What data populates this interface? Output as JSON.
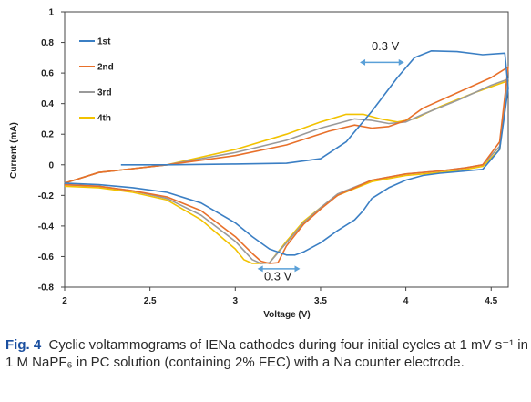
{
  "caption": {
    "label": "Fig. 4",
    "text": "Cyclic voltammograms of IENa cathodes during four initial cycles at 1 mV s⁻¹ in 1 M NaPF₆ in PC solution (containing 2% FEC) with a Na counter electrode."
  },
  "chart_data": {
    "type": "line",
    "title": "",
    "xlabel": "Voltage (V)",
    "ylabel": "Current (mA)",
    "xlim": [
      2,
      4.6
    ],
    "ylim": [
      -0.8,
      1
    ],
    "xticks": [
      2,
      2.5,
      3,
      3.5,
      4,
      4.5
    ],
    "xtick_labels": [
      "2",
      "2.5",
      "3",
      "3.5",
      "4",
      "4.5"
    ],
    "yticks": [
      -0.8,
      -0.6,
      -0.4,
      -0.2,
      0,
      0.2,
      0.4,
      0.6,
      0.8,
      1
    ],
    "ytick_labels": [
      "-0.8",
      "-0.6",
      "-0.4",
      "-0.2",
      "0",
      "0.2",
      "0.4",
      "0.6",
      "0.8",
      "1"
    ],
    "grid": false,
    "legend_position": "top-left",
    "series": [
      {
        "name": "1st",
        "color": "#3b7fc4",
        "x": [
          2.33,
          2.6,
          3.0,
          3.3,
          3.5,
          3.65,
          3.8,
          3.95,
          4.05,
          4.15,
          4.3,
          4.45,
          4.58,
          4.6,
          4.55,
          4.45,
          4.35,
          4.2,
          4.1,
          4.0,
          3.9,
          3.8,
          3.75,
          3.7,
          3.6,
          3.5,
          3.4,
          3.35,
          3.3,
          3.2,
          3.1,
          3.0,
          2.8,
          2.6,
          2.4,
          2.2,
          2.0
        ],
        "y": [
          0.0,
          0.0,
          0.005,
          0.01,
          0.04,
          0.15,
          0.35,
          0.57,
          0.7,
          0.745,
          0.74,
          0.72,
          0.73,
          0.5,
          0.1,
          -0.03,
          -0.04,
          -0.055,
          -0.07,
          -0.1,
          -0.15,
          -0.22,
          -0.3,
          -0.36,
          -0.43,
          -0.51,
          -0.57,
          -0.59,
          -0.59,
          -0.55,
          -0.47,
          -0.38,
          -0.25,
          -0.18,
          -0.15,
          -0.13,
          -0.12
        ]
      },
      {
        "name": "2nd",
        "color": "#e8702a",
        "x": [
          2.0,
          2.2,
          2.6,
          3.0,
          3.3,
          3.55,
          3.7,
          3.8,
          3.9,
          4.0,
          4.1,
          4.3,
          4.5,
          4.6,
          4.55,
          4.45,
          4.35,
          4.2,
          4.0,
          3.8,
          3.6,
          3.5,
          3.4,
          3.3,
          3.25,
          3.2,
          3.15,
          3.1,
          3.0,
          2.8,
          2.6,
          2.4,
          2.2,
          2.0
        ],
        "y": [
          -0.12,
          -0.05,
          0.0,
          0.06,
          0.13,
          0.22,
          0.26,
          0.24,
          0.25,
          0.29,
          0.37,
          0.47,
          0.57,
          0.64,
          0.15,
          0.0,
          -0.02,
          -0.04,
          -0.06,
          -0.1,
          -0.2,
          -0.29,
          -0.39,
          -0.53,
          -0.64,
          -0.645,
          -0.63,
          -0.58,
          -0.47,
          -0.3,
          -0.21,
          -0.17,
          -0.14,
          -0.13
        ]
      },
      {
        "name": "3rd",
        "color": "#9a9a9a",
        "x": [
          2.0,
          2.2,
          2.6,
          3.0,
          3.3,
          3.5,
          3.7,
          3.8,
          3.9,
          4.0,
          4.1,
          4.3,
          4.5,
          4.6,
          4.55,
          4.45,
          4.35,
          4.2,
          4.0,
          3.8,
          3.6,
          3.5,
          3.4,
          3.3,
          3.2,
          3.15,
          3.1,
          3.05,
          3.0,
          2.8,
          2.6,
          2.4,
          2.2,
          2.0
        ],
        "y": [
          -0.12,
          -0.05,
          0.0,
          0.08,
          0.16,
          0.24,
          0.3,
          0.29,
          0.27,
          0.28,
          0.33,
          0.42,
          0.52,
          0.56,
          0.12,
          0.0,
          -0.02,
          -0.04,
          -0.06,
          -0.1,
          -0.19,
          -0.28,
          -0.38,
          -0.51,
          -0.64,
          -0.645,
          -0.62,
          -0.56,
          -0.5,
          -0.33,
          -0.22,
          -0.17,
          -0.14,
          -0.13
        ]
      },
      {
        "name": "4th",
        "color": "#f2c200",
        "x": [
          2.0,
          2.2,
          2.6,
          3.0,
          3.3,
          3.5,
          3.65,
          3.75,
          3.85,
          3.95,
          4.05,
          4.2,
          4.4,
          4.55,
          4.6,
          4.55,
          4.45,
          4.35,
          4.2,
          4.0,
          3.8,
          3.6,
          3.5,
          3.4,
          3.3,
          3.2,
          3.15,
          3.1,
          3.05,
          3.0,
          2.8,
          2.6,
          2.4,
          2.2,
          2.0
        ],
        "y": [
          -0.12,
          -0.05,
          0.0,
          0.1,
          0.2,
          0.28,
          0.33,
          0.33,
          0.3,
          0.28,
          0.3,
          0.38,
          0.47,
          0.53,
          0.55,
          0.1,
          -0.01,
          -0.03,
          -0.05,
          -0.07,
          -0.11,
          -0.2,
          -0.28,
          -0.37,
          -0.5,
          -0.64,
          -0.645,
          -0.645,
          -0.62,
          -0.55,
          -0.36,
          -0.23,
          -0.18,
          -0.15,
          -0.14
        ]
      }
    ],
    "annotations": [
      {
        "text": "0.3 V",
        "x_from": 3.73,
        "x_to": 3.99,
        "arrow_y": 0.67,
        "text_x": 3.88,
        "text_y": 0.78
      },
      {
        "text": "0.3 V",
        "x_from": 3.13,
        "x_to": 3.38,
        "arrow_y": -0.68,
        "text_x": 3.25,
        "text_y": -0.725
      }
    ]
  }
}
